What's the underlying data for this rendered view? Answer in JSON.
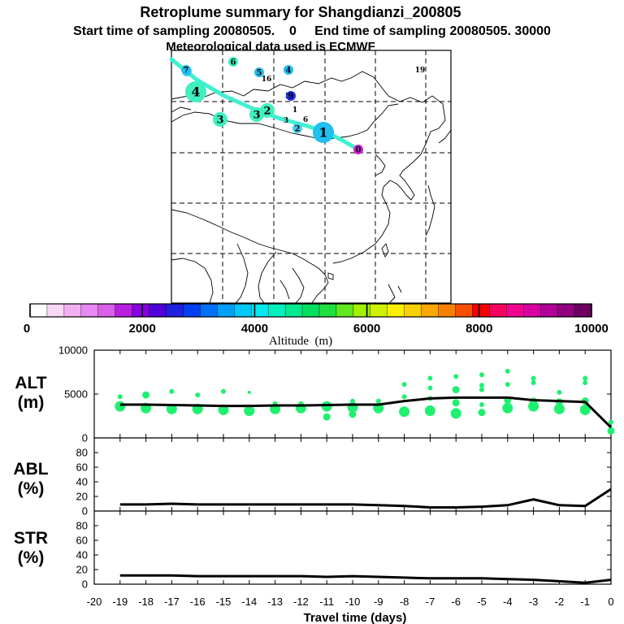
{
  "title": {
    "line1": "Retroplume summary for Shangdianzi_200805",
    "line2": "Start time of sampling 20080505.    0     End time of sampling 20080505. 30000",
    "line3": "Meteorological data used is ECMWF"
  },
  "colorbar": {
    "title": "Altitude  (m)",
    "tick_labels": [
      "0",
      "2000",
      "4000",
      "6000",
      "8000",
      "10000"
    ],
    "tick_values": [
      0,
      2000,
      4000,
      6000,
      8000,
      10000
    ],
    "colors": [
      "#ffffff",
      "#f8d8f8",
      "#f0b0f0",
      "#e888f0",
      "#d860e8",
      "#b820e0",
      "#8800e0",
      "#5000d8",
      "#2020e0",
      "#0040f0",
      "#0070f8",
      "#00a0f8",
      "#00c8f8",
      "#00e8f0",
      "#00f0c0",
      "#00e890",
      "#00e060",
      "#20e040",
      "#60e820",
      "#a0f000",
      "#d0f000",
      "#f8f000",
      "#f8d000",
      "#f8a800",
      "#f88000",
      "#f85000",
      "#f80000",
      "#f80060",
      "#f00090",
      "#d800a0",
      "#b00098",
      "#900080",
      "#700060"
    ]
  },
  "map": {
    "trajectory_color": "#40f0d0",
    "markers": [
      {
        "label": "0",
        "color": "#d020d0",
        "size": "small"
      },
      {
        "label": "1",
        "color": "#20c0f0",
        "size": "large"
      },
      {
        "label": "1",
        "color": "#f8d000",
        "size": "tiny"
      },
      {
        "label": "2",
        "color": "#40d0f0",
        "size": "small"
      },
      {
        "label": "2",
        "color": "#40f0c0",
        "size": "medium"
      },
      {
        "label": "3",
        "color": "#40f0c0",
        "size": "medium"
      },
      {
        "label": "3",
        "color": "#40f0c0",
        "size": "medium"
      },
      {
        "label": "3",
        "color": "#000000",
        "size": "tiny"
      },
      {
        "label": "4",
        "color": "#40f0c0",
        "size": "large"
      },
      {
        "label": "4",
        "color": "#20c0f0",
        "size": "small"
      },
      {
        "label": "4",
        "color": "#40d0f0",
        "size": "small"
      },
      {
        "label": "5",
        "color": "#20c0f0",
        "size": "small"
      },
      {
        "label": "5",
        "color": "#20c0f0",
        "size": "tiny"
      },
      {
        "label": "6",
        "color": "#40f0c0",
        "size": "small"
      },
      {
        "label": "6",
        "color": "#f8d000",
        "size": "tiny"
      },
      {
        "label": "7",
        "color": "#20c0f0",
        "size": "small"
      },
      {
        "label": "9",
        "color": "#2030e0",
        "size": "small"
      },
      {
        "label": "16",
        "color": "#20c0f0",
        "size": "tiny"
      },
      {
        "label": "19",
        "color": "#20e080",
        "size": "tiny"
      }
    ]
  },
  "chart_data": [
    {
      "type": "line",
      "title": "ALT",
      "ylabel": "ALT (m)",
      "panel_label_line1": "ALT",
      "panel_label_line2": "(m)",
      "xlabel": "Travel time (days)",
      "xlim": [
        -20,
        0
      ],
      "ylim": [
        0,
        10000
      ],
      "y_ticks": [
        0,
        5000,
        10000
      ],
      "y_tick_labels": [
        "0",
        "5000",
        "10000"
      ],
      "x": [
        -19,
        -18,
        -17,
        -16,
        -15,
        -14,
        -13,
        -12,
        -11,
        -10,
        -9,
        -8,
        -7,
        -6,
        -5,
        -4,
        -3,
        -2,
        -1,
        0
      ],
      "values": [
        3800,
        3800,
        3750,
        3700,
        3650,
        3650,
        3700,
        3700,
        3750,
        3800,
        3800,
        4200,
        4500,
        4600,
        4600,
        4600,
        4300,
        4200,
        4100,
        1200
      ],
      "line_color": "#000000",
      "scatter_color": "#20f070",
      "scatter": [
        {
          "x": -19,
          "y": 3600,
          "s": "large"
        },
        {
          "x": -19,
          "y": 4700,
          "s": "small"
        },
        {
          "x": -18,
          "y": 3400,
          "s": "large"
        },
        {
          "x": -18,
          "y": 4900,
          "s": "medium"
        },
        {
          "x": -17,
          "y": 3300,
          "s": "large"
        },
        {
          "x": -17,
          "y": 5300,
          "s": "small"
        },
        {
          "x": -16,
          "y": 3300,
          "s": "large"
        },
        {
          "x": -16,
          "y": 4900,
          "s": "small"
        },
        {
          "x": -15,
          "y": 3200,
          "s": "large"
        },
        {
          "x": -15,
          "y": 5300,
          "s": "small"
        },
        {
          "x": -14,
          "y": 3100,
          "s": "large"
        },
        {
          "x": -14,
          "y": 5200,
          "s": "tiny"
        },
        {
          "x": -13,
          "y": 3300,
          "s": "large"
        },
        {
          "x": -13,
          "y": 3900,
          "s": "small"
        },
        {
          "x": -12,
          "y": 3400,
          "s": "large"
        },
        {
          "x": -12,
          "y": 3900,
          "s": "small"
        },
        {
          "x": -11,
          "y": 3600,
          "s": "large"
        },
        {
          "x": -11,
          "y": 2400,
          "s": "medium"
        },
        {
          "x": -10,
          "y": 3500,
          "s": "large"
        },
        {
          "x": -10,
          "y": 2700,
          "s": "medium"
        },
        {
          "x": -10,
          "y": 4200,
          "s": "small"
        },
        {
          "x": -9,
          "y": 3400,
          "s": "large"
        },
        {
          "x": -9,
          "y": 4200,
          "s": "small"
        },
        {
          "x": -8,
          "y": 3000,
          "s": "large"
        },
        {
          "x": -8,
          "y": 4700,
          "s": "small"
        },
        {
          "x": -8,
          "y": 6100,
          "s": "small"
        },
        {
          "x": -8,
          "y": 2800,
          "s": "small"
        },
        {
          "x": -7,
          "y": 3100,
          "s": "large"
        },
        {
          "x": -7,
          "y": 4500,
          "s": "small"
        },
        {
          "x": -7,
          "y": 6800,
          "s": "small"
        },
        {
          "x": -7,
          "y": 5700,
          "s": "small"
        },
        {
          "x": -6,
          "y": 2800,
          "s": "large"
        },
        {
          "x": -6,
          "y": 4000,
          "s": "medium"
        },
        {
          "x": -6,
          "y": 5500,
          "s": "medium"
        },
        {
          "x": -6,
          "y": 7000,
          "s": "small"
        },
        {
          "x": -5,
          "y": 2900,
          "s": "medium"
        },
        {
          "x": -5,
          "y": 3800,
          "s": "small"
        },
        {
          "x": -5,
          "y": 6000,
          "s": "small"
        },
        {
          "x": -5,
          "y": 7200,
          "s": "small"
        },
        {
          "x": -5,
          "y": 5500,
          "s": "small"
        },
        {
          "x": -4,
          "y": 3400,
          "s": "large"
        },
        {
          "x": -4,
          "y": 4300,
          "s": "medium"
        },
        {
          "x": -4,
          "y": 7600,
          "s": "small"
        },
        {
          "x": -4,
          "y": 6100,
          "s": "small"
        },
        {
          "x": -3,
          "y": 3600,
          "s": "large"
        },
        {
          "x": -3,
          "y": 4200,
          "s": "medium"
        },
        {
          "x": -3,
          "y": 6300,
          "s": "small"
        },
        {
          "x": -3,
          "y": 6800,
          "s": "small"
        },
        {
          "x": -2,
          "y": 3300,
          "s": "large"
        },
        {
          "x": -2,
          "y": 4100,
          "s": "medium"
        },
        {
          "x": -2,
          "y": 5200,
          "s": "small"
        },
        {
          "x": -1,
          "y": 3200,
          "s": "large"
        },
        {
          "x": -1,
          "y": 4200,
          "s": "medium"
        },
        {
          "x": -1,
          "y": 6800,
          "s": "small"
        },
        {
          "x": -1,
          "y": 6300,
          "s": "small"
        },
        {
          "x": 0,
          "y": 800,
          "s": "medium"
        },
        {
          "x": 0,
          "y": 1800,
          "s": "small"
        }
      ]
    },
    {
      "type": "line",
      "title": "ABL",
      "ylabel": "ABL (%)",
      "panel_label_line1": "ABL",
      "panel_label_line2": "(%)",
      "xlim": [
        -20,
        0
      ],
      "ylim": [
        0,
        100
      ],
      "y_ticks": [
        0,
        20,
        40,
        60,
        80
      ],
      "y_tick_labels": [
        "0",
        "20",
        "40",
        "60",
        "80"
      ],
      "x": [
        -19,
        -18,
        -17,
        -16,
        -15,
        -14,
        -13,
        -12,
        -11,
        -10,
        -9,
        -8,
        -7,
        -6,
        -5,
        -4,
        -3,
        -2,
        -1,
        0
      ],
      "values": [
        9,
        9,
        10,
        9,
        9,
        9,
        9,
        9,
        9,
        9,
        8,
        7,
        5,
        5,
        6,
        8,
        16,
        8,
        7,
        30
      ],
      "line_color": "#000000"
    },
    {
      "type": "line",
      "title": "STR",
      "ylabel": "STR (%)",
      "panel_label_line1": "STR",
      "panel_label_line2": "(%)",
      "xlim": [
        -20,
        0
      ],
      "ylim": [
        0,
        100
      ],
      "y_ticks": [
        0,
        20,
        40,
        60,
        80
      ],
      "y_tick_labels": [
        "0",
        "20",
        "40",
        "60",
        "80"
      ],
      "x_ticks": [
        -20,
        -19,
        -18,
        -17,
        -16,
        -15,
        -14,
        -13,
        -12,
        -11,
        -10,
        -9,
        -8,
        -7,
        -6,
        -5,
        -4,
        -3,
        -2,
        -1,
        0
      ],
      "x_tick_labels": [
        "-20",
        "-19",
        "-18",
        "-17",
        "-16",
        "-15",
        "-14",
        "-13",
        "-12",
        "-11",
        "-10",
        "-9",
        "-8",
        "-7",
        "-6",
        "-5",
        "-4",
        "-3",
        "-2",
        "-1",
        "0"
      ],
      "xlabel": "Travel time (days)",
      "x": [
        -19,
        -18,
        -17,
        -16,
        -15,
        -14,
        -13,
        -12,
        -11,
        -10,
        -9,
        -8,
        -7,
        -6,
        -5,
        -4,
        -3,
        -2,
        -1,
        0
      ],
      "values": [
        12,
        12,
        12,
        11,
        11,
        11,
        11,
        11,
        10,
        11,
        10,
        9,
        8,
        8,
        8,
        7,
        6,
        4,
        2,
        6
      ],
      "line_color": "#000000"
    }
  ]
}
